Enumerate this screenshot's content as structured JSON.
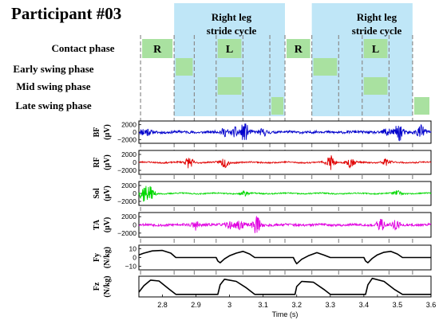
{
  "title": "Participant #03",
  "phase_labels": [
    "Contact phase",
    "Early swing phase",
    "Mid swing phase",
    "Late swing phase"
  ],
  "stride_label_line1": "Right leg",
  "stride_label_line2": "stride cycle",
  "colors": {
    "stride_bg": "#bfe6f7",
    "phase_box": "#a9e1a0",
    "dashed": "#8c8c8c"
  },
  "chart_data": {
    "type": "line",
    "xlabel": "Time (s)",
    "xlim": [
      2.73,
      3.6
    ],
    "x_ticks": [
      "2.8",
      "2.9",
      "3",
      "3.1",
      "3.2",
      "3.3",
      "3.4",
      "3.5",
      "3.6"
    ],
    "x_tick_values": [
      2.8,
      2.9,
      3.0,
      3.1,
      3.2,
      3.3,
      3.4,
      3.5,
      3.6
    ],
    "event_times": [
      2.735,
      2.835,
      2.895,
      2.96,
      3.04,
      3.12,
      3.165,
      3.245,
      3.325,
      3.395,
      3.475,
      3.545
    ],
    "stride_cycles": [
      {
        "start": 2.835,
        "end": 3.165
      },
      {
        "start": 3.245,
        "end": 3.545
      }
    ],
    "phase_blocks": [
      {
        "row": 0,
        "label": "R",
        "start": 2.735,
        "end": 2.835
      },
      {
        "row": 0,
        "label": "L",
        "start": 2.96,
        "end": 3.04
      },
      {
        "row": 0,
        "label": "R",
        "start": 3.165,
        "end": 3.245
      },
      {
        "row": 0,
        "label": "L",
        "start": 3.395,
        "end": 3.475
      },
      {
        "row": 1,
        "label": "",
        "start": 2.835,
        "end": 2.895
      },
      {
        "row": 1,
        "label": "",
        "start": 3.245,
        "end": 3.325
      },
      {
        "row": 2,
        "label": "",
        "start": 2.96,
        "end": 3.04
      },
      {
        "row": 2,
        "label": "",
        "start": 3.395,
        "end": 3.475
      },
      {
        "row": 3,
        "label": "",
        "start": 3.12,
        "end": 3.165
      },
      {
        "row": 3,
        "label": "",
        "start": 3.545,
        "end": 3.6
      }
    ],
    "series": [
      {
        "name": "BF",
        "unit": "(μV)",
        "color": "#0000cc",
        "ylim": [
          -3000,
          3000
        ],
        "ticks": [
          "2000",
          "0",
          "−2000"
        ],
        "tick_values": [
          2000,
          0,
          -2000
        ],
        "kind": "emg",
        "bursts": [
          [
            2.75,
            0.55
          ],
          [
            2.985,
            0.4
          ],
          [
            3.02,
            0.55
          ],
          [
            3.045,
            1.0
          ],
          [
            3.1,
            0.35
          ],
          [
            3.47,
            0.55
          ],
          [
            3.505,
            1.0
          ],
          [
            3.57,
            0.75
          ]
        ],
        "base": 0.14,
        "seed": 11
      },
      {
        "name": "RF",
        "unit": "(μV)",
        "color": "#e00000",
        "ylim": [
          -3000,
          3000
        ],
        "ticks": [
          "2000",
          "0",
          "−2000"
        ],
        "tick_values": [
          2000,
          0,
          -2000
        ],
        "kind": "emg",
        "bursts": [
          [
            2.88,
            0.6
          ],
          [
            2.985,
            0.55
          ],
          [
            3.3,
            0.8
          ],
          [
            3.36,
            0.55
          ],
          [
            3.465,
            0.35
          ]
        ],
        "base": 0.07,
        "seed": 23
      },
      {
        "name": "Sol",
        "unit": "(μV)",
        "color": "#00d800",
        "ylim": [
          -3000,
          3000
        ],
        "ticks": [
          "2000",
          "0",
          "−2000"
        ],
        "tick_values": [
          2000,
          0,
          -2000
        ],
        "kind": "emg",
        "bursts": [
          [
            2.745,
            1.0
          ],
          [
            2.765,
            0.6
          ],
          [
            3.045,
            0.25
          ],
          [
            3.5,
            0.25
          ]
        ],
        "base": 0.06,
        "seed": 37
      },
      {
        "name": "TA",
        "unit": "(μV)",
        "color": "#e000e0",
        "ylim": [
          -3000,
          3000
        ],
        "ticks": [
          "2000",
          "0",
          "−2000"
        ],
        "tick_values": [
          2000,
          0,
          -2000
        ],
        "kind": "emg",
        "bursts": [
          [
            2.9,
            0.45
          ],
          [
            3.0,
            0.3
          ],
          [
            3.03,
            0.5
          ],
          [
            3.08,
            0.9
          ],
          [
            3.45,
            0.6
          ],
          [
            3.495,
            0.5
          ]
        ],
        "base": 0.12,
        "seed": 53
      },
      {
        "name": "Fy",
        "unit": "(N/kg)",
        "color": "#000000",
        "ylim": [
          -14,
          14
        ],
        "ticks": [
          "10",
          "0",
          "−10"
        ],
        "tick_values": [
          10,
          0,
          -10
        ],
        "kind": "force",
        "points": [
          [
            2.73,
            3.0
          ],
          [
            2.745,
            5.0
          ],
          [
            2.77,
            7.5
          ],
          [
            2.8,
            8.0
          ],
          [
            2.825,
            5.0
          ],
          [
            2.84,
            0.0
          ],
          [
            2.96,
            0.0
          ],
          [
            2.965,
            -4.0
          ],
          [
            2.972,
            -6.0
          ],
          [
            2.985,
            -1.5
          ],
          [
            3.0,
            2.0
          ],
          [
            3.02,
            5.0
          ],
          [
            3.04,
            7.0
          ],
          [
            3.06,
            4.0
          ],
          [
            3.075,
            0.0
          ],
          [
            3.19,
            0.0
          ],
          [
            3.195,
            -4.0
          ],
          [
            3.2,
            -7.0
          ],
          [
            3.215,
            -2.0
          ],
          [
            3.235,
            2.0
          ],
          [
            3.26,
            5.5
          ],
          [
            3.28,
            3.0
          ],
          [
            3.3,
            0.0
          ],
          [
            3.4,
            0.0
          ],
          [
            3.405,
            -4.0
          ],
          [
            3.412,
            -6.0
          ],
          [
            3.425,
            -1.0
          ],
          [
            3.44,
            3.0
          ],
          [
            3.46,
            6.0
          ],
          [
            3.48,
            7.0
          ],
          [
            3.5,
            4.0
          ],
          [
            3.515,
            0.0
          ],
          [
            3.6,
            0.0
          ]
        ]
      },
      {
        "name": "Fz",
        "unit": "(N/kg)",
        "color": "#000000",
        "ylim": [
          -6,
          42
        ],
        "ticks": [],
        "tick_values": [],
        "kind": "force",
        "points": [
          [
            2.73,
            5.0
          ],
          [
            2.745,
            20.0
          ],
          [
            2.765,
            33.0
          ],
          [
            2.79,
            31.0
          ],
          [
            2.82,
            12.0
          ],
          [
            2.84,
            0.0
          ],
          [
            2.965,
            0.0
          ],
          [
            2.972,
            22.0
          ],
          [
            2.985,
            35.0
          ],
          [
            3.02,
            30.0
          ],
          [
            3.05,
            15.0
          ],
          [
            3.075,
            0.0
          ],
          [
            3.195,
            0.0
          ],
          [
            3.2,
            18.0
          ],
          [
            3.215,
            30.0
          ],
          [
            3.25,
            28.0
          ],
          [
            3.28,
            12.0
          ],
          [
            3.3,
            0.0
          ],
          [
            3.405,
            0.0
          ],
          [
            3.412,
            22.0
          ],
          [
            3.425,
            37.0
          ],
          [
            3.46,
            30.0
          ],
          [
            3.49,
            12.0
          ],
          [
            3.515,
            0.0
          ],
          [
            3.6,
            0.0
          ]
        ]
      }
    ]
  }
}
